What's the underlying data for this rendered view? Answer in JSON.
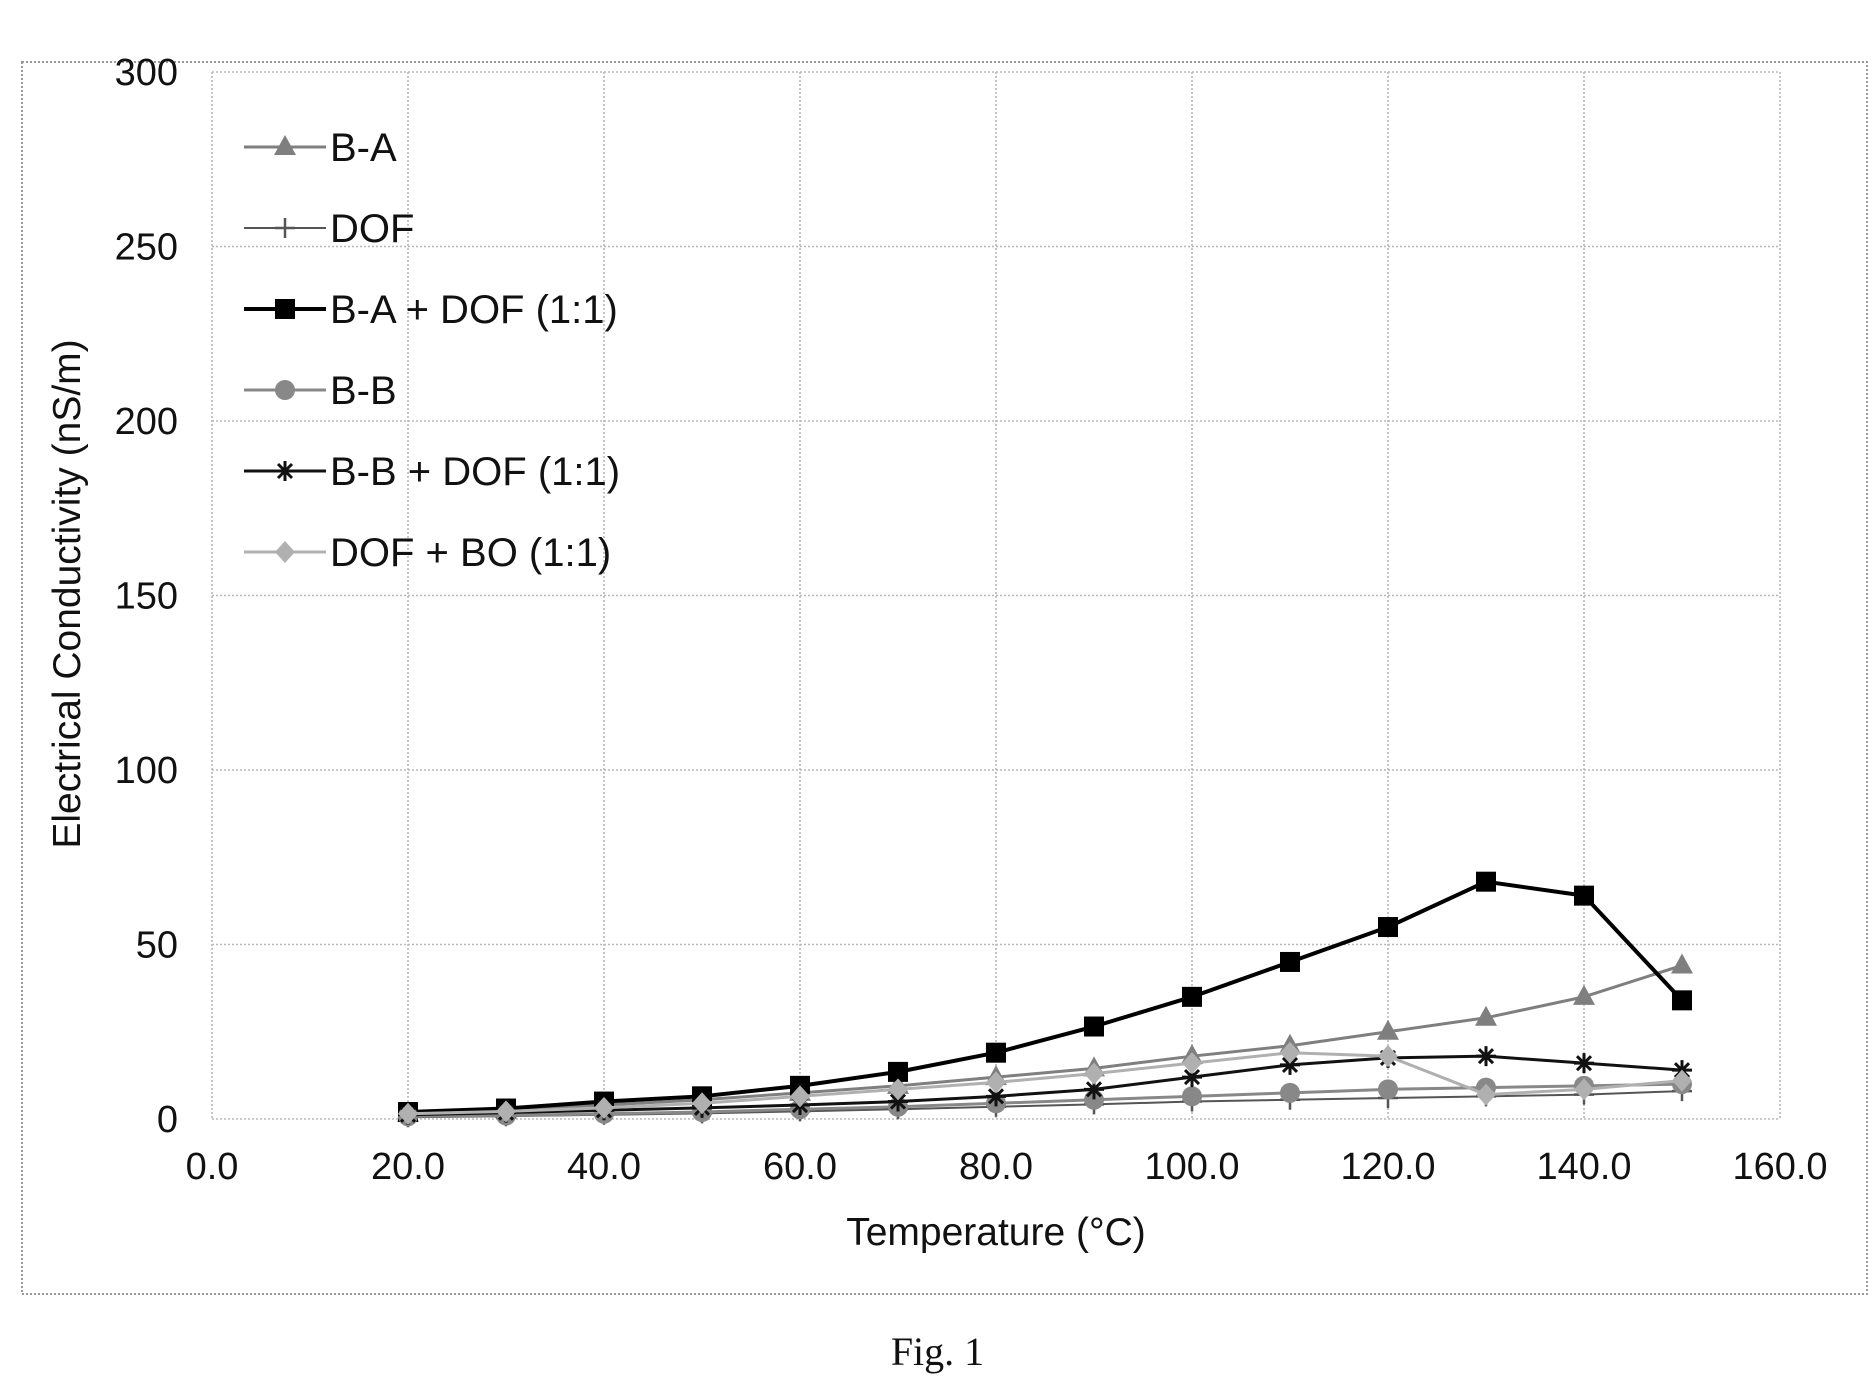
{
  "figure_label": "Fig. 1",
  "chart_data": {
    "type": "line",
    "xlabel": "Temperature (°C)",
    "ylabel": "Electrical Conductivity  (nS/m)",
    "xlim": [
      0,
      160
    ],
    "ylim": [
      0,
      300
    ],
    "x_ticks": [
      "0.0",
      "20.0",
      "40.0",
      "60.0",
      "80.0",
      "100.0",
      "120.0",
      "140.0",
      "160.0"
    ],
    "y_ticks": [
      "0",
      "50",
      "100",
      "150",
      "200",
      "250",
      "300"
    ],
    "grid": true,
    "legend_position": "top-left",
    "x": [
      20,
      30,
      40,
      50,
      60,
      70,
      80,
      90,
      100,
      110,
      120,
      130,
      140,
      150
    ],
    "series": [
      {
        "name": "B-A",
        "marker": "triangle",
        "color": "#7f7f7f",
        "stroke_width": 3,
        "values": [
          1.5,
          2.5,
          4,
          5.5,
          7.5,
          9.5,
          12,
          14.5,
          18,
          21,
          25,
          29,
          35,
          44
        ]
      },
      {
        "name": "DOF",
        "marker": "plus",
        "color": "#555555",
        "stroke_width": 2,
        "values": [
          0.5,
          0.8,
          1.2,
          1.6,
          2.2,
          2.8,
          3.5,
          4.2,
          5,
          5.5,
          6,
          6.5,
          7,
          8
        ]
      },
      {
        "name": "B-A + DOF (1:1)",
        "marker": "square",
        "color": "#000000",
        "stroke_width": 4,
        "values": [
          2,
          3,
          5,
          6.5,
          9.5,
          13.5,
          19,
          26.5,
          35,
          45,
          55,
          68,
          64,
          34
        ]
      },
      {
        "name": "B-B",
        "marker": "circle",
        "color": "#888888",
        "stroke_width": 3,
        "values": [
          0.8,
          1,
          1.5,
          2,
          2.8,
          3.5,
          4.5,
          5.5,
          6.5,
          7.5,
          8.5,
          9,
          9.5,
          10
        ]
      },
      {
        "name": "B-B + DOF (1:1)",
        "marker": "asterisk",
        "color": "#111111",
        "stroke_width": 3,
        "values": [
          1.2,
          1.8,
          2.5,
          3.2,
          4,
          5,
          6.5,
          8.5,
          12,
          15.5,
          17.5,
          18,
          16,
          14
        ]
      },
      {
        "name": "DOF + BO (1:1)",
        "marker": "diamond",
        "color": "#b0b0b0",
        "stroke_width": 3,
        "values": [
          1.5,
          2.2,
          3.2,
          4.5,
          6.5,
          8.5,
          10.5,
          13,
          16,
          19,
          18,
          7,
          8.5,
          11
        ]
      }
    ]
  }
}
